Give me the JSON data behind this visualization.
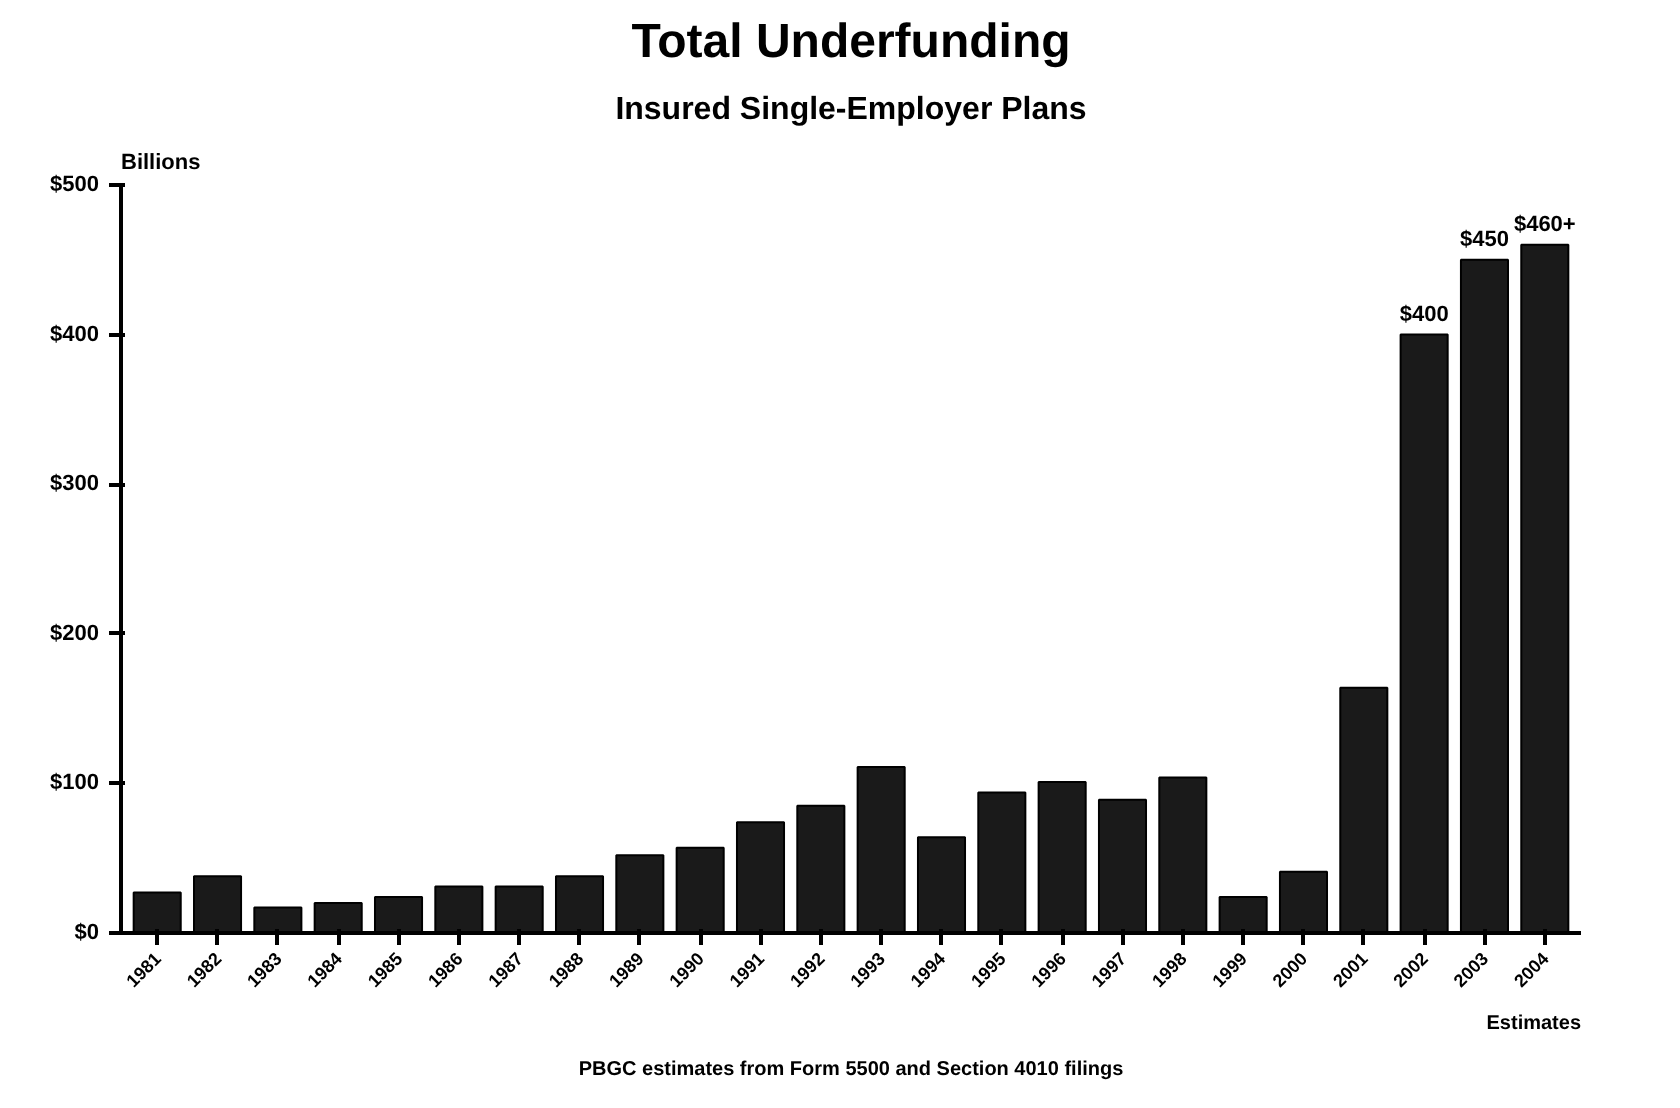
{
  "chart_data": {
    "type": "bar",
    "title": "Total Underfunding",
    "subtitle": "Insured Single-Employer Plans",
    "ylabel": "Billions",
    "categories": [
      "1981",
      "1982",
      "1983",
      "1984",
      "1985",
      "1986",
      "1987",
      "1988",
      "1989",
      "1990",
      "1991",
      "1992",
      "1993",
      "1994",
      "1995",
      "1996",
      "1997",
      "1998",
      "1999",
      "2000",
      "2001",
      "2002",
      "2003",
      "2004"
    ],
    "values": [
      27,
      38,
      17,
      20,
      24,
      31,
      31,
      38,
      52,
      57,
      74,
      85,
      111,
      64,
      94,
      101,
      89,
      104,
      24,
      41,
      164,
      400,
      450,
      460
    ],
    "value_labels": [
      null,
      null,
      null,
      null,
      null,
      null,
      null,
      null,
      null,
      null,
      null,
      null,
      null,
      null,
      null,
      null,
      null,
      null,
      null,
      null,
      null,
      "$400",
      "$450",
      "$460+"
    ],
    "color": "#1a1a1a",
    "ylim": [
      0,
      500
    ],
    "yticks": [
      {
        "value": 0,
        "label": "$0"
      },
      {
        "value": 100,
        "label": "$100"
      },
      {
        "value": 200,
        "label": "$200"
      },
      {
        "value": 300,
        "label": "$300"
      },
      {
        "value": 400,
        "label": "$400"
      },
      {
        "value": 500,
        "label": "$500"
      }
    ],
    "grid": false,
    "annotations": [
      "Estimates",
      "PBGC estimates from Form 5500 and Section 4010 filings"
    ]
  }
}
